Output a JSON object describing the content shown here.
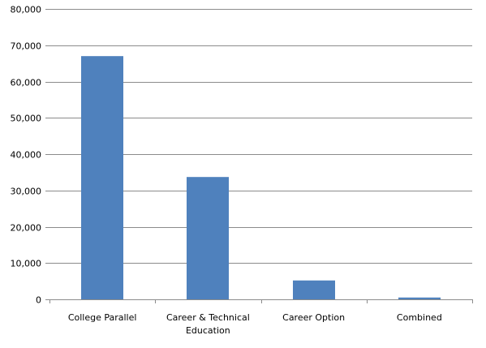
{
  "chart_data": {
    "type": "bar",
    "title": "",
    "xlabel": "",
    "ylabel": "",
    "categories": [
      "College Parallel",
      "Career & Technical Education",
      "Career Option",
      "Combined"
    ],
    "category_label_lines": [
      [
        "College Parallel"
      ],
      [
        "Career & Technical",
        "Education"
      ],
      [
        "Career Option"
      ],
      [
        "Combined"
      ]
    ],
    "values": [
      67000,
      33700,
      5200,
      500
    ],
    "ylim": [
      0,
      80000
    ],
    "y_ticks": [
      0,
      10000,
      20000,
      30000,
      40000,
      50000,
      60000,
      70000,
      80000
    ],
    "y_tick_labels": [
      "0",
      "10,000",
      "20,000",
      "30,000",
      "40,000",
      "50,000",
      "60,000",
      "70,000",
      "80,000"
    ],
    "grid": true,
    "legend": "none",
    "bar_color": "#4f81bd"
  }
}
